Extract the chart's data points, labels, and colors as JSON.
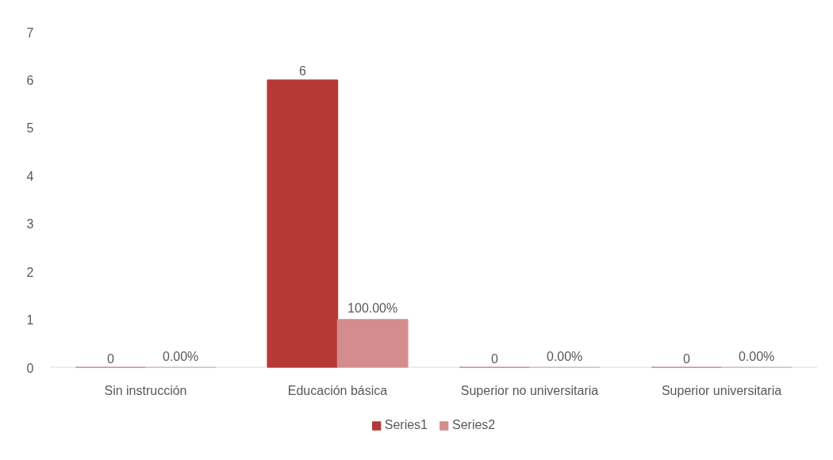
{
  "chart_data": {
    "type": "bar",
    "categories": [
      "Sin instrucción",
      "Educación básica",
      "Superior no universitaria",
      "Superior universitaria"
    ],
    "series": [
      {
        "name": "Series1",
        "color": "#b83838",
        "values": [
          0,
          6,
          0,
          0
        ],
        "value_labels": [
          "0",
          "6",
          "0",
          "0"
        ]
      },
      {
        "name": "Series2",
        "color": "#d58c8c",
        "values": [
          0,
          1,
          0,
          0
        ],
        "value_labels": [
          "0.00%",
          "100.00%",
          "0.00%",
          "0.00%"
        ]
      }
    ],
    "ylim": [
      0,
      7
    ],
    "yticks": [
      0,
      1,
      2,
      3,
      4,
      5,
      6,
      7
    ],
    "grid": false,
    "legend": "bottom"
  }
}
